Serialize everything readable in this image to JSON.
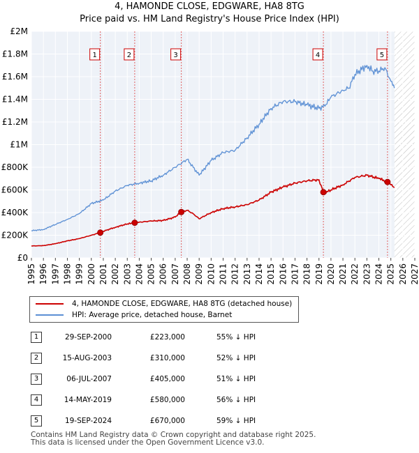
{
  "title_line1": "4, HAMONDE CLOSE, EDGWARE, HA8 8TG",
  "title_line2": "Price paid vs. HM Land Registry's House Price Index (HPI)",
  "chart_data": {
    "type": "line",
    "xlim": [
      1995,
      2027
    ],
    "ylim": [
      0,
      2000000
    ],
    "y_ticks": [
      0,
      200000,
      400000,
      600000,
      800000,
      1000000,
      1200000,
      1400000,
      1600000,
      1800000,
      2000000
    ],
    "y_tick_labels": [
      "£0",
      "£200K",
      "£400K",
      "£600K",
      "£800K",
      "£1M",
      "£1.2M",
      "£1.4M",
      "£1.6M",
      "£1.8M",
      "£2M"
    ],
    "x_ticks": [
      "1995",
      "1996",
      "1997",
      "1998",
      "1999",
      "2000",
      "2001",
      "2002",
      "2003",
      "2004",
      "2005",
      "2006",
      "2007",
      "2008",
      "2009",
      "2010",
      "2011",
      "2012",
      "2013",
      "2014",
      "2015",
      "2016",
      "2017",
      "2018",
      "2019",
      "2020",
      "2021",
      "2022",
      "2023",
      "2024",
      "2025",
      "2026",
      "2027"
    ],
    "hatch_region": [
      2025.3,
      2027
    ],
    "series": [
      {
        "name": "4, HAMONDE CLOSE, EDGWARE, HA8 8TG (detached house)",
        "color": "#cc0000",
        "x": [
          1995,
          1996,
          1997,
          1998,
          1999,
          2000,
          2000.75,
          2001,
          2002,
          2003,
          2003.62,
          2004,
          2005,
          2006,
          2007,
          2007.51,
          2008,
          2008.5,
          2009,
          2010,
          2011,
          2012,
          2013,
          2014,
          2015,
          2016,
          2017,
          2018,
          2019,
          2019.37,
          2019.4,
          2020,
          2021,
          2022,
          2023,
          2024,
          2024.72,
          2025,
          2025.3
        ],
        "values": [
          105000,
          108000,
          125000,
          150000,
          170000,
          200000,
          223000,
          235000,
          270000,
          300000,
          310000,
          315000,
          325000,
          330000,
          360000,
          405000,
          420000,
          390000,
          345000,
          400000,
          435000,
          450000,
          470000,
          510000,
          580000,
          625000,
          660000,
          680000,
          690000,
          580000,
          570000,
          600000,
          645000,
          710000,
          730000,
          700000,
          670000,
          645000,
          620000
        ]
      },
      {
        "name": "HPI: Average price, detached house, Barnet",
        "color": "#5b8fd4",
        "x": [
          1995,
          1996,
          1997,
          1998,
          1999,
          2000,
          2001,
          2002,
          2003,
          2004,
          2005,
          2006,
          2007,
          2008,
          2008.5,
          2009,
          2010,
          2011,
          2012,
          2013,
          2014,
          2015,
          2016,
          2017,
          2018,
          2019,
          2019.5,
          2020,
          2021,
          2021.5,
          2022,
          2023,
          2023.5,
          2024,
          2024.5,
          2025,
          2025.3
        ],
        "values": [
          240000,
          250000,
          295000,
          340000,
          390000,
          480000,
          510000,
          590000,
          640000,
          660000,
          680000,
          730000,
          800000,
          870000,
          800000,
          730000,
          860000,
          930000,
          950000,
          1060000,
          1180000,
          1320000,
          1380000,
          1380000,
          1350000,
          1320000,
          1340000,
          1420000,
          1480000,
          1500000,
          1620000,
          1700000,
          1650000,
          1650000,
          1680000,
          1560000,
          1500000
        ]
      }
    ],
    "sales": [
      {
        "id": "1",
        "x": 2000.75,
        "value": 223000
      },
      {
        "id": "2",
        "x": 2003.62,
        "value": 310000
      },
      {
        "id": "3",
        "x": 2007.51,
        "value": 405000
      },
      {
        "id": "4",
        "x": 2019.37,
        "value": 580000
      },
      {
        "id": "5",
        "x": 2024.72,
        "value": 670000
      }
    ]
  },
  "legend": {
    "property": "4, HAMONDE CLOSE, EDGWARE, HA8 8TG (detached house)",
    "hpi": "HPI: Average price, detached house, Barnet",
    "property_color": "#cc0000",
    "hpi_color": "#5b8fd4"
  },
  "table": [
    {
      "id": "1",
      "date": "29-SEP-2000",
      "price": "£223,000",
      "hpi": "55% ↓ HPI"
    },
    {
      "id": "2",
      "date": "15-AUG-2003",
      "price": "£310,000",
      "hpi": "52% ↓ HPI"
    },
    {
      "id": "3",
      "date": "06-JUL-2007",
      "price": "£405,000",
      "hpi": "51% ↓ HPI"
    },
    {
      "id": "4",
      "date": "14-MAY-2019",
      "price": "£580,000",
      "hpi": "56% ↓ HPI"
    },
    {
      "id": "5",
      "date": "19-SEP-2024",
      "price": "£670,000",
      "hpi": "59% ↓ HPI"
    }
  ],
  "footer_line1": "Contains HM Land Registry data © Crown copyright and database right 2025.",
  "footer_line2": "This data is licensed under the Open Government Licence v3.0."
}
